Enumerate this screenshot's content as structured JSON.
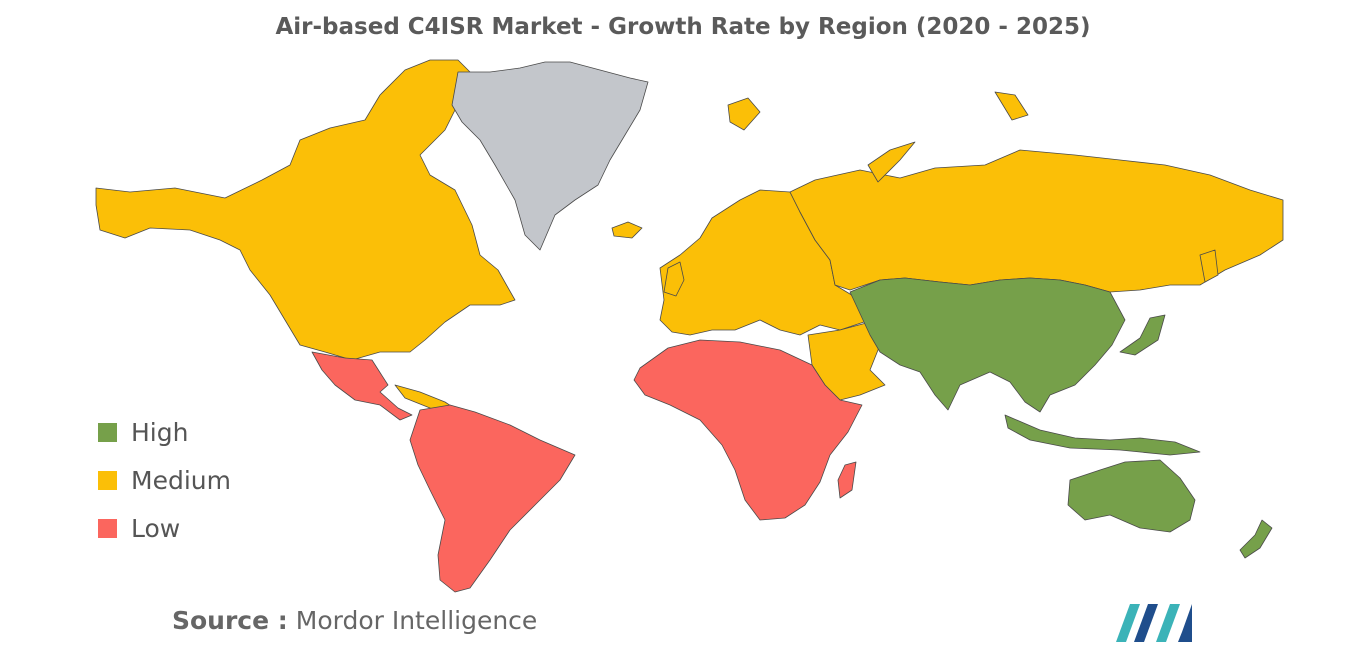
{
  "title": "Air-based C4ISR Market - Growth Rate by Region (2020 - 2025)",
  "legend": [
    {
      "label": "High",
      "color": "#76a04a"
    },
    {
      "label": "Medium",
      "color": "#fbbf07"
    },
    {
      "label": "Low",
      "color": "#fb665e"
    }
  ],
  "no_data_color": "#c3c6cb",
  "regions": {
    "north_america": "Medium",
    "europe": "Medium",
    "russia": "Medium",
    "middle_east": "Medium",
    "latin_america": "Low",
    "africa": "Low",
    "asia_pacific": "High",
    "greenland": "No data"
  },
  "source": {
    "label": "Source :",
    "text": "Mordor Intelligence"
  },
  "colors": {
    "logo_teal": "#3bb3b8",
    "logo_blue": "#1f4e8c"
  }
}
